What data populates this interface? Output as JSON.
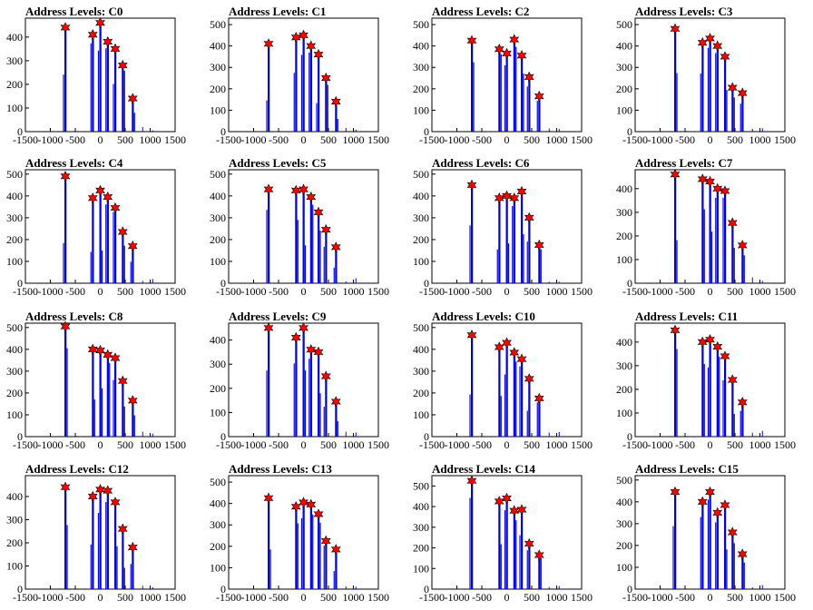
{
  "figure": {
    "background": "#ffffff",
    "bar_color": "#0000ff",
    "marker_fill": "#ff0000",
    "marker_edge": "#000000"
  },
  "x_tick_labels": [
    "-1500",
    "-1000",
    "-500",
    "0",
    "500",
    "1000",
    "1500"
  ],
  "chart_data": [
    {
      "type": "bar",
      "title": "Address Levels: C0",
      "xlim": [
        -1500,
        1500
      ],
      "ylim": [
        0,
        480
      ],
      "yticks": [
        0,
        100,
        200,
        300,
        400
      ],
      "x": [
        -700,
        -150,
        0,
        150,
        300,
        450,
        650
      ],
      "values": [
        440,
        410,
        460,
        380,
        350,
        280,
        140
      ]
    },
    {
      "type": "bar",
      "title": "Address Levels: C1",
      "xlim": [
        -1500,
        1500
      ],
      "ylim": [
        0,
        530
      ],
      "yticks": [
        0,
        100,
        200,
        300,
        400,
        500
      ],
      "x": [
        -700,
        -150,
        0,
        150,
        300,
        450,
        650
      ],
      "values": [
        410,
        440,
        450,
        400,
        360,
        250,
        140
      ]
    },
    {
      "type": "bar",
      "title": "Address Levels: C2",
      "xlim": [
        -1500,
        1500
      ],
      "ylim": [
        0,
        530
      ],
      "yticks": [
        0,
        100,
        200,
        300,
        400,
        500
      ],
      "x": [
        -700,
        -150,
        0,
        150,
        300,
        450,
        650
      ],
      "values": [
        425,
        385,
        365,
        430,
        355,
        255,
        165
      ]
    },
    {
      "type": "bar",
      "title": "Address Levels: C3",
      "xlim": [
        -1500,
        1500
      ],
      "ylim": [
        0,
        530
      ],
      "yticks": [
        0,
        100,
        200,
        300,
        400,
        500
      ],
      "x": [
        -700,
        -150,
        0,
        150,
        300,
        450,
        650
      ],
      "values": [
        480,
        415,
        435,
        400,
        350,
        205,
        180
      ]
    },
    {
      "type": "bar",
      "title": "Address Levels: C4",
      "xlim": [
        -1500,
        1500
      ],
      "ylim": [
        0,
        520
      ],
      "yticks": [
        0,
        100,
        200,
        300,
        400,
        500
      ],
      "x": [
        -700,
        -150,
        0,
        150,
        300,
        450,
        650
      ],
      "values": [
        490,
        390,
        425,
        395,
        345,
        235,
        170
      ]
    },
    {
      "type": "bar",
      "title": "Address Levels: C5",
      "xlim": [
        -1500,
        1500
      ],
      "ylim": [
        0,
        520
      ],
      "yticks": [
        0,
        100,
        200,
        300,
        400,
        500
      ],
      "x": [
        -700,
        -150,
        0,
        150,
        300,
        450,
        650
      ],
      "values": [
        430,
        425,
        430,
        395,
        325,
        245,
        165
      ]
    },
    {
      "type": "bar",
      "title": "Address Levels: C6",
      "xlim": [
        -1500,
        1500
      ],
      "ylim": [
        0,
        520
      ],
      "yticks": [
        0,
        100,
        200,
        300,
        400,
        500
      ],
      "x": [
        -700,
        -150,
        0,
        150,
        300,
        450,
        650
      ],
      "values": [
        450,
        390,
        400,
        390,
        420,
        300,
        175
      ]
    },
    {
      "type": "bar",
      "title": "Address Levels: C7",
      "xlim": [
        -1500,
        1500
      ],
      "ylim": [
        0,
        480
      ],
      "yticks": [
        0,
        100,
        200,
        300,
        400
      ],
      "x": [
        -700,
        -150,
        0,
        150,
        300,
        450,
        650
      ],
      "values": [
        460,
        440,
        430,
        400,
        390,
        255,
        160
      ]
    },
    {
      "type": "bar",
      "title": "Address Levels: C8",
      "xlim": [
        -1500,
        1500
      ],
      "ylim": [
        0,
        520
      ],
      "yticks": [
        0,
        100,
        200,
        300,
        400,
        500
      ],
      "x": [
        -700,
        -150,
        0,
        150,
        300,
        450,
        650
      ],
      "values": [
        505,
        400,
        395,
        375,
        360,
        255,
        165
      ]
    },
    {
      "type": "bar",
      "title": "Address Levels: C9",
      "xlim": [
        -1500,
        1500
      ],
      "ylim": [
        0,
        470
      ],
      "yticks": [
        0,
        100,
        200,
        300,
        400
      ],
      "x": [
        -700,
        -150,
        0,
        150,
        300,
        450,
        650
      ],
      "values": [
        450,
        410,
        450,
        360,
        350,
        250,
        145
      ]
    },
    {
      "type": "bar",
      "title": "Address Levels: C10",
      "xlim": [
        -1500,
        1500
      ],
      "ylim": [
        0,
        520
      ],
      "yticks": [
        0,
        100,
        200,
        300,
        400,
        500
      ],
      "x": [
        -700,
        -150,
        0,
        150,
        300,
        450,
        650
      ],
      "values": [
        465,
        410,
        430,
        385,
        355,
        265,
        175
      ]
    },
    {
      "type": "bar",
      "title": "Address Levels: C11",
      "xlim": [
        -1500,
        1500
      ],
      "ylim": [
        0,
        480
      ],
      "yticks": [
        0,
        100,
        200,
        300,
        400
      ],
      "x": [
        -700,
        -150,
        0,
        150,
        300,
        450,
        650
      ],
      "values": [
        450,
        400,
        410,
        380,
        340,
        240,
        145
      ]
    },
    {
      "type": "bar",
      "title": "Address Levels: C12",
      "xlim": [
        -1500,
        1500
      ],
      "ylim": [
        0,
        490
      ],
      "yticks": [
        0,
        100,
        200,
        300,
        400
      ],
      "x": [
        -700,
        -150,
        0,
        150,
        300,
        450,
        650
      ],
      "values": [
        440,
        400,
        430,
        425,
        375,
        260,
        180
      ]
    },
    {
      "type": "bar",
      "title": "Address Levels: C13",
      "xlim": [
        -1500,
        1500
      ],
      "ylim": [
        0,
        530
      ],
      "yticks": [
        0,
        100,
        200,
        300,
        400,
        500
      ],
      "x": [
        -700,
        -150,
        0,
        150,
        300,
        450,
        650
      ],
      "values": [
        425,
        385,
        405,
        395,
        350,
        225,
        185
      ]
    },
    {
      "type": "bar",
      "title": "Address Levels: C14",
      "xlim": [
        -1500,
        1500
      ],
      "ylim": [
        0,
        550
      ],
      "yticks": [
        0,
        100,
        200,
        300,
        400,
        500
      ],
      "x": [
        -700,
        -150,
        0,
        150,
        300,
        450,
        650
      ],
      "values": [
        525,
        425,
        440,
        380,
        385,
        220,
        165
      ]
    },
    {
      "type": "bar",
      "title": "Address Levels: C15",
      "xlim": [
        -1500,
        1500
      ],
      "ylim": [
        0,
        520
      ],
      "yticks": [
        0,
        100,
        200,
        300,
        400,
        500
      ],
      "x": [
        -700,
        -150,
        0,
        150,
        300,
        450,
        650
      ],
      "values": [
        445,
        400,
        445,
        350,
        385,
        260,
        160
      ]
    }
  ]
}
